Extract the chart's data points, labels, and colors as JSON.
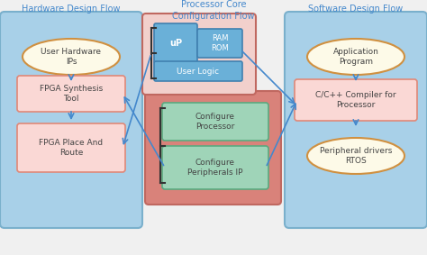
{
  "title_left": "Hardware Design Flow",
  "title_center": "Processor Core\nConfiguration Flow",
  "title_right": "Software Design Flow",
  "bg_color": "#f0f0f0",
  "left_panel_fill": "#a8d0e8",
  "left_panel_edge": "#7ab0cc",
  "right_panel_fill": "#a8d0e8",
  "right_panel_edge": "#7ab0cc",
  "center_top_fill": "#d9827a",
  "center_top_edge": "#c06860",
  "center_bot_fill": "#f2d0cc",
  "center_bot_edge": "#c06860",
  "pink_box_fill": "#fad8d5",
  "pink_box_edge": "#e08878",
  "green_box_fill": "#9fd4b8",
  "green_box_edge": "#5aaa80",
  "blue_box_fill": "#6ab0d8",
  "blue_box_edge": "#4080b0",
  "oval_fill": "#fdfae8",
  "oval_edge": "#d09040",
  "title_color": "#4488cc",
  "arrow_color": "#4488cc",
  "text_color": "#444444",
  "bracket_color": "#333333"
}
